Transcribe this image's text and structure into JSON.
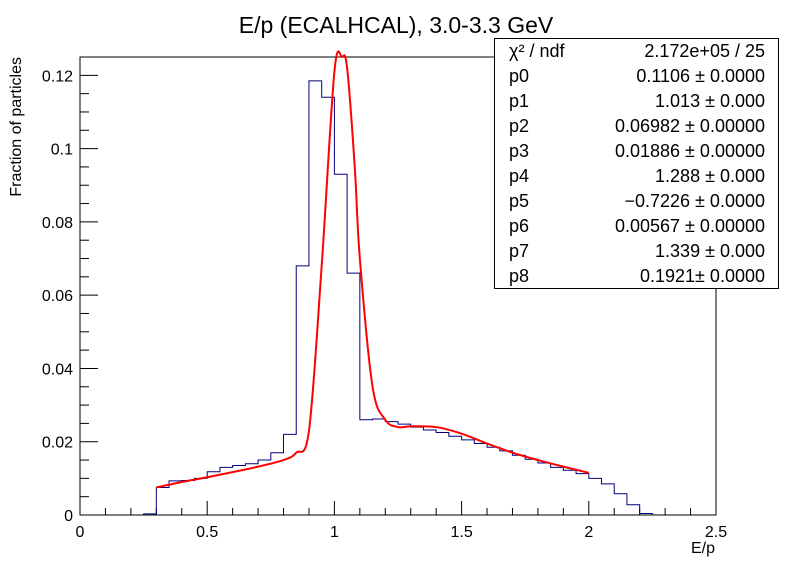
{
  "chart_data": {
    "type": "histogram",
    "title": "E/p (ECALHCAL), 3.0-3.3 GeV",
    "xlabel": "E/p",
    "ylabel": "Fraction of particles",
    "xlim": [
      0,
      2.5
    ],
    "ylim": [
      0,
      0.125
    ],
    "x_ticks": [
      0,
      0.5,
      1,
      1.5,
      2,
      2.5
    ],
    "x_tick_labels": [
      "0",
      "0.5",
      "1",
      "1.5",
      "2",
      "2.5"
    ],
    "y_ticks": [
      0,
      0.02,
      0.04,
      0.06,
      0.08,
      0.1,
      0.12
    ],
    "y_tick_labels": [
      "0",
      "0.02",
      "0.04",
      "0.06",
      "0.08",
      "0.1",
      "0.12"
    ],
    "grid": false,
    "histogram": {
      "color": "#00007f",
      "bin_width": 0.05,
      "bin_edges_start": 0.25,
      "values": [
        0.0003,
        0.0075,
        0.0093,
        0.0094,
        0.01,
        0.0118,
        0.013,
        0.0135,
        0.014,
        0.015,
        0.017,
        0.022,
        0.068,
        0.1185,
        0.114,
        0.093,
        0.066,
        0.026,
        0.0262,
        0.0255,
        0.0248,
        0.024,
        0.0232,
        0.0225,
        0.0215,
        0.0205,
        0.0195,
        0.0185,
        0.0175,
        0.0163,
        0.0152,
        0.0142,
        0.013,
        0.0122,
        0.0113,
        0.01,
        0.0085,
        0.0058,
        0.0028,
        0.0004
      ]
    },
    "fit": {
      "color": "#ff0000",
      "x_range": [
        0.3,
        2.0
      ],
      "x": [
        0.3,
        0.4,
        0.5,
        0.6,
        0.7,
        0.8,
        0.85,
        0.9,
        0.95,
        1.0,
        1.03,
        1.05,
        1.08,
        1.1,
        1.15,
        1.2,
        1.25,
        1.3,
        1.4,
        1.5,
        1.6,
        1.7,
        1.8,
        1.9,
        2.0
      ],
      "y": [
        0.0075,
        0.009,
        0.0103,
        0.0117,
        0.0132,
        0.015,
        0.017,
        0.023,
        0.068,
        0.121,
        0.125,
        0.122,
        0.095,
        0.07,
        0.035,
        0.026,
        0.024,
        0.0242,
        0.024,
        0.0222,
        0.0195,
        0.017,
        0.015,
        0.0132,
        0.0115
      ]
    },
    "stats": [
      {
        "name": "χ² / ndf",
        "value": "2.172e+05 / 25"
      },
      {
        "name": "p0",
        "value": "0.1106 ± 0.0000"
      },
      {
        "name": "p1",
        "value": "1.013 ± 0.000"
      },
      {
        "name": "p2",
        "value": "0.06982 ± 0.00000"
      },
      {
        "name": "p3",
        "value": "0.01886 ± 0.00000"
      },
      {
        "name": "p4",
        "value": "1.288 ± 0.000"
      },
      {
        "name": "p5",
        "value": "−0.7226 ± 0.0000"
      },
      {
        "name": "p6",
        "value": "0.00567 ± 0.00000"
      },
      {
        "name": "p7",
        "value": "1.339 ± 0.000"
      },
      {
        "name": "p8",
        "value": "0.1921± 0.0000"
      }
    ]
  }
}
